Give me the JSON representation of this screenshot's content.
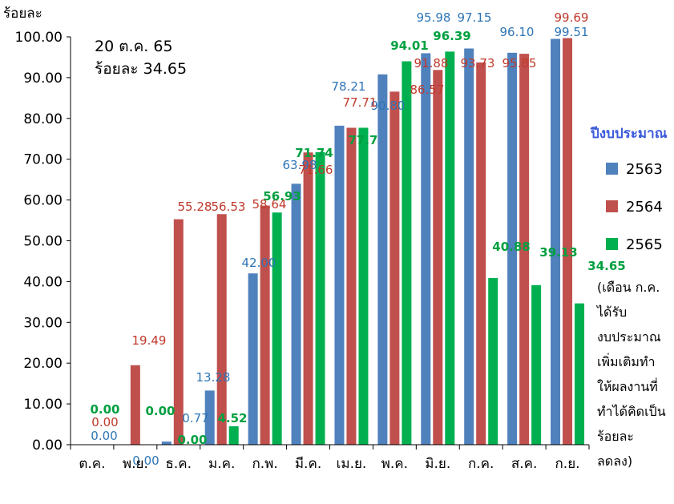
{
  "chart_data": {
    "type": "bar",
    "ylabel": "ร้อยละ",
    "ylim": [
      0,
      100
    ],
    "yticks": [
      "0.00",
      "10.00",
      "20.00",
      "30.00",
      "40.00",
      "50.00",
      "60.00",
      "70.00",
      "80.00",
      "90.00",
      "100.00"
    ],
    "categories": [
      "ต.ค.",
      "พ.ย.",
      "ธ.ค.",
      "ม.ค.",
      "ก.พ.",
      "มี.ค.",
      "เม.ย.",
      "พ.ค.",
      "มิ.ย.",
      "ก.ค.",
      "ส.ค.",
      "ก.ย."
    ],
    "series": [
      {
        "name": "2563",
        "color": "#4F81BD",
        "label_color": "#2E75B6",
        "values": [
          0.0,
          0.0,
          0.77,
          13.28,
          42.0,
          63.98,
          78.21,
          90.8,
          95.98,
          97.15,
          96.1,
          99.51
        ],
        "labels": [
          "0.00",
          "0.00",
          "0.77",
          "13.28",
          "42.00",
          "63.98",
          "78.21",
          "90.80",
          "95.98",
          "97.15",
          "96.10",
          "99.51"
        ]
      },
      {
        "name": "2564",
        "color": "#C0504D",
        "label_color": "#C0392B",
        "values": [
          0.0,
          19.49,
          55.28,
          56.53,
          58.64,
          71.66,
          77.71,
          86.57,
          91.88,
          93.73,
          95.85,
          99.69
        ],
        "labels": [
          "0.00",
          "19.49",
          "55.28",
          "56.53",
          "58.64",
          "71.66",
          "77.71",
          "86.57",
          "91.88",
          "93.73",
          "95.85",
          "99.69"
        ]
      },
      {
        "name": "2565",
        "color": "#00B050",
        "label_color": "#00A040",
        "values": [
          0.0,
          0.0,
          0.0,
          4.52,
          56.93,
          71.74,
          77.71,
          94.01,
          96.39,
          40.88,
          39.13,
          34.65
        ],
        "labels": [
          "0.00",
          "0.00",
          "0.00",
          "4.52",
          "56.93",
          "71.74",
          "77.7",
          "94.01",
          "96.39",
          "40.88",
          "39.13",
          "34.65"
        ]
      }
    ],
    "annotation": {
      "line1": "20 ต.ค. 65",
      "line2": "ร้อยละ 34.65"
    },
    "legend": {
      "title": "ปีงบประมาณ",
      "placement": "right",
      "note_lines": [
        "(เดือน ก.ค.",
        "ได้รับ",
        "งบประมาณ",
        "เพิ่มเติมทำ",
        "ให้ผลงานที่",
        "ทำได้คิดเป็น",
        "ร้อยละ",
        "ลดลง)"
      ]
    }
  }
}
